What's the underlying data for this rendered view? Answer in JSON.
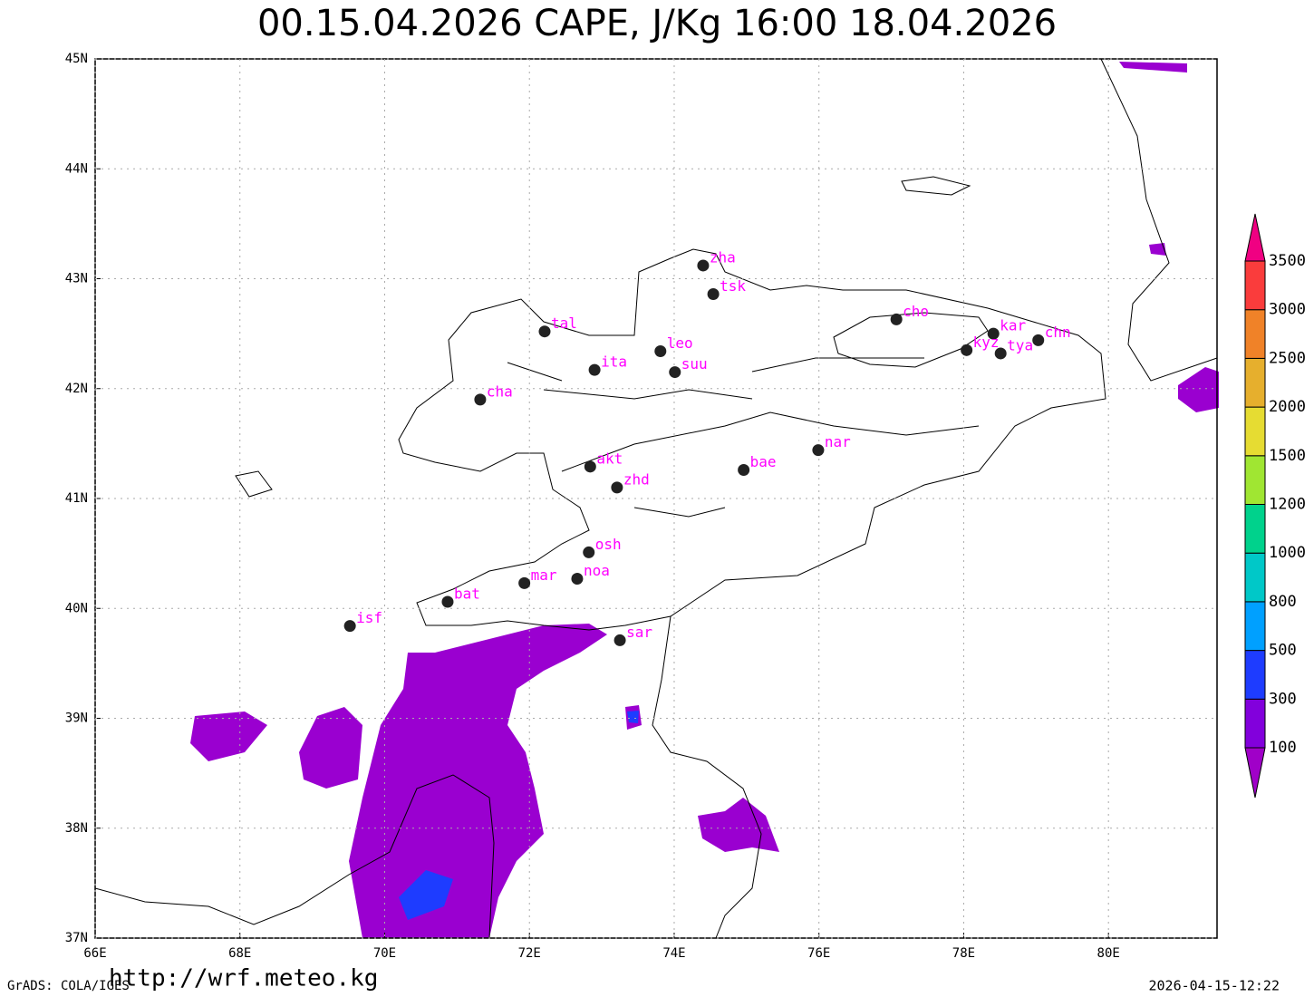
{
  "title": "00.15.04.2026 CAPE, J/Kg 16:00 18.04.2026",
  "lon_range": [
    66,
    81.5
  ],
  "lat_range": [
    37,
    45
  ],
  "lon_ticks": [
    {
      "value": 66,
      "label": "66E"
    },
    {
      "value": 68,
      "label": "68E"
    },
    {
      "value": 70,
      "label": "70E"
    },
    {
      "value": 72,
      "label": "72E"
    },
    {
      "value": 74,
      "label": "74E"
    },
    {
      "value": 76,
      "label": "76E"
    },
    {
      "value": 78,
      "label": "78E"
    },
    {
      "value": 80,
      "label": "80E"
    }
  ],
  "lat_ticks": [
    {
      "value": 37,
      "label": "37N"
    },
    {
      "value": 38,
      "label": "38N"
    },
    {
      "value": 39,
      "label": "39N"
    },
    {
      "value": 40,
      "label": "40N"
    },
    {
      "value": 41,
      "label": "41N"
    },
    {
      "value": 42,
      "label": "42N"
    },
    {
      "value": 43,
      "label": "43N"
    },
    {
      "value": 44,
      "label": "44N"
    },
    {
      "value": 45,
      "label": "45N"
    }
  ],
  "grid": true,
  "station_color": "#ff00ff",
  "stations": [
    {
      "label": "zha",
      "lon": 74.4,
      "lat": 43.12
    },
    {
      "label": "tsk",
      "lon": 74.54,
      "lat": 42.86
    },
    {
      "label": "tal",
      "lon": 72.21,
      "lat": 42.52
    },
    {
      "label": "cho",
      "lon": 77.07,
      "lat": 42.63
    },
    {
      "label": "kar",
      "lon": 78.41,
      "lat": 42.5
    },
    {
      "label": "chn",
      "lon": 79.03,
      "lat": 42.44
    },
    {
      "label": "kyz",
      "lon": 78.04,
      "lat": 42.35
    },
    {
      "label": "tya",
      "lon": 78.51,
      "lat": 42.32
    },
    {
      "label": "leo",
      "lon": 73.81,
      "lat": 42.34
    },
    {
      "label": "ita",
      "lon": 72.9,
      "lat": 42.17
    },
    {
      "label": "suu",
      "lon": 74.01,
      "lat": 42.15
    },
    {
      "label": "cha",
      "lon": 71.32,
      "lat": 41.9
    },
    {
      "label": "nar",
      "lon": 75.99,
      "lat": 41.44
    },
    {
      "label": "bae",
      "lon": 74.96,
      "lat": 41.26
    },
    {
      "label": "akt",
      "lon": 72.84,
      "lat": 41.29
    },
    {
      "label": "zhd",
      "lon": 73.21,
      "lat": 41.1
    },
    {
      "label": "osh",
      "lon": 72.82,
      "lat": 40.51
    },
    {
      "label": "noa",
      "lon": 72.66,
      "lat": 40.27
    },
    {
      "label": "mar",
      "lon": 71.93,
      "lat": 40.23
    },
    {
      "label": "bat",
      "lon": 70.87,
      "lat": 40.06
    },
    {
      "label": "isf",
      "lon": 69.52,
      "lat": 39.84
    },
    {
      "label": "sar",
      "lon": 73.25,
      "lat": 39.71
    }
  ],
  "colorbar": {
    "levels": [
      100,
      300,
      500,
      800,
      1000,
      1200,
      1500,
      2000,
      2500,
      3000,
      3500
    ],
    "colors": [
      "#a000c8",
      "#8200dc",
      "#1e3cff",
      "#00a0ff",
      "#00c8c8",
      "#00d28c",
      "#a0e632",
      "#e6dc32",
      "#e6af2d",
      "#f08228",
      "#fa3c3c",
      "#f00082"
    ]
  },
  "footer": {
    "software": "GrADS: COLA/IGES",
    "url": "http://wrf.meteo.kg",
    "timestamp": "2026-04-15-12:22"
  }
}
